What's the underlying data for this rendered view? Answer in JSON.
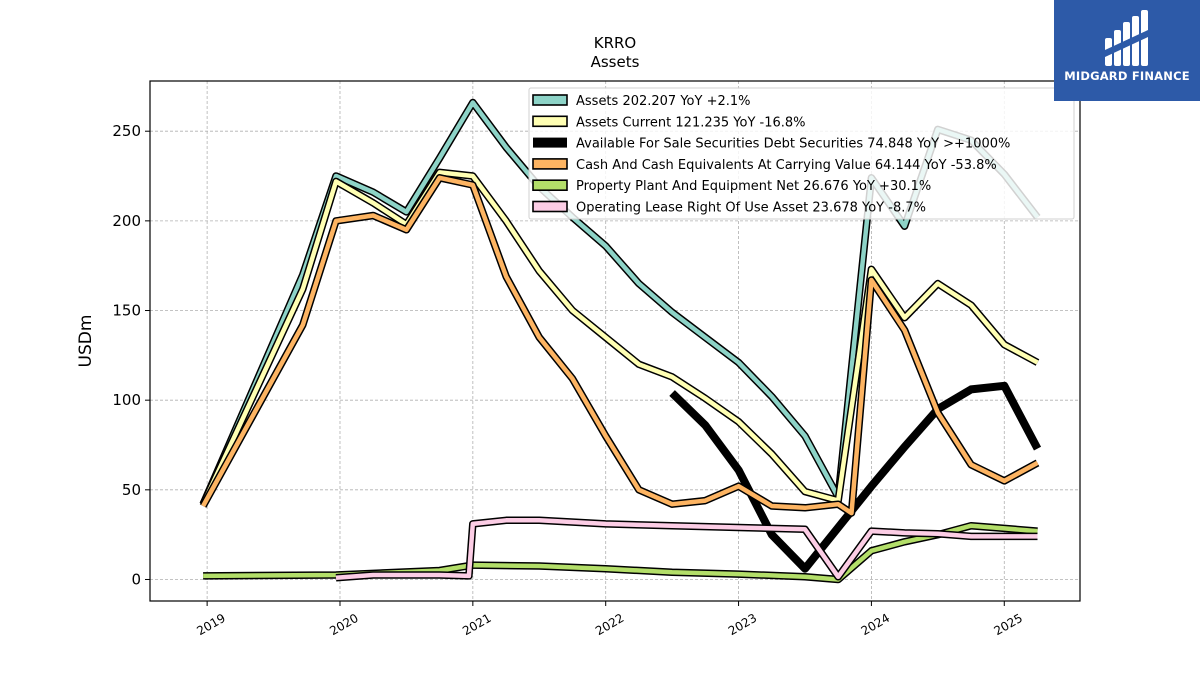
{
  "chart_data": {
    "type": "line",
    "title": "KRRO",
    "subtitle": "Assets",
    "ylabel": "USDm",
    "xlabel": "",
    "ylim": [
      -12,
      278
    ],
    "xlim": [
      2018.57,
      2025.57
    ],
    "yticks": [
      0,
      50,
      100,
      150,
      200,
      250
    ],
    "xticks": [
      {
        "value": 2019,
        "label": "2019"
      },
      {
        "value": 2020,
        "label": "2020"
      },
      {
        "value": 2021,
        "label": "2021"
      },
      {
        "value": 2022,
        "label": "2022"
      },
      {
        "value": 2023,
        "label": "2023"
      },
      {
        "value": 2024,
        "label": "2024"
      },
      {
        "value": 2025,
        "label": "2025"
      }
    ],
    "grid": true,
    "legend_position": "top-right",
    "series": [
      {
        "name": "Assets",
        "legend": "Assets  202.207 YoY +2.1%",
        "color": "#8dd3c7",
        "points": [
          [
            2018.97,
            42
          ],
          [
            2019.72,
            170
          ],
          [
            2019.97,
            225
          ],
          [
            2020.25,
            216
          ],
          [
            2020.5,
            205
          ],
          [
            2020.75,
            235
          ],
          [
            2021.0,
            266
          ],
          [
            2021.25,
            241
          ],
          [
            2021.5,
            219
          ],
          [
            2021.75,
            202
          ],
          [
            2022.0,
            186
          ],
          [
            2022.25,
            165
          ],
          [
            2022.5,
            149
          ],
          [
            2022.75,
            135
          ],
          [
            2023.0,
            121
          ],
          [
            2023.25,
            102
          ],
          [
            2023.5,
            80
          ],
          [
            2023.75,
            46
          ],
          [
            2024.0,
            224
          ],
          [
            2024.25,
            197
          ],
          [
            2024.5,
            251
          ],
          [
            2024.75,
            245
          ],
          [
            2025.0,
            226
          ],
          [
            2025.25,
            202
          ]
        ]
      },
      {
        "name": "Assets Current",
        "legend": "Assets Current  121.235 YoY -16.8%",
        "color": "#ffffb3",
        "points": [
          [
            2018.97,
            42
          ],
          [
            2019.72,
            162
          ],
          [
            2019.97,
            222
          ],
          [
            2020.25,
            210
          ],
          [
            2020.5,
            198
          ],
          [
            2020.75,
            227
          ],
          [
            2021.0,
            225
          ],
          [
            2021.25,
            200
          ],
          [
            2021.5,
            172
          ],
          [
            2021.75,
            150
          ],
          [
            2022.0,
            135
          ],
          [
            2022.25,
            120
          ],
          [
            2022.5,
            113
          ],
          [
            2022.75,
            101
          ],
          [
            2023.0,
            88
          ],
          [
            2023.25,
            70
          ],
          [
            2023.5,
            49
          ],
          [
            2023.75,
            44
          ],
          [
            2024.0,
            173
          ],
          [
            2024.25,
            146
          ],
          [
            2024.5,
            165
          ],
          [
            2024.75,
            153
          ],
          [
            2025.0,
            131
          ],
          [
            2025.25,
            121
          ]
        ]
      },
      {
        "name": "Available For Sale Securities Debt Securities",
        "legend": "Available For Sale Securities Debt Securities  74.848 YoY >+1000%",
        "color": "#000000",
        "points": [
          [
            2022.5,
            104
          ],
          [
            2022.75,
            86
          ],
          [
            2023.0,
            61
          ],
          [
            2023.25,
            25
          ],
          [
            2023.5,
            6
          ],
          [
            2023.75,
            29
          ],
          [
            2024.0,
            52
          ],
          [
            2024.25,
            74
          ],
          [
            2024.5,
            95
          ],
          [
            2024.75,
            106
          ],
          [
            2025.0,
            108
          ],
          [
            2025.25,
            73
          ]
        ]
      },
      {
        "name": "Cash And Cash Equivalents At Carrying Value",
        "legend": "Cash And Cash Equivalents At Carrying Value  64.144 YoY -53.8%",
        "color": "#fdb462",
        "points": [
          [
            2018.97,
            41
          ],
          [
            2019.72,
            142
          ],
          [
            2019.97,
            200
          ],
          [
            2020.25,
            203
          ],
          [
            2020.5,
            195
          ],
          [
            2020.75,
            224
          ],
          [
            2021.0,
            220
          ],
          [
            2021.25,
            169
          ],
          [
            2021.5,
            135
          ],
          [
            2021.75,
            112
          ],
          [
            2022.0,
            80
          ],
          [
            2022.25,
            50
          ],
          [
            2022.5,
            42
          ],
          [
            2022.75,
            44
          ],
          [
            2023.0,
            52
          ],
          [
            2023.25,
            41
          ],
          [
            2023.5,
            40
          ],
          [
            2023.75,
            42
          ],
          [
            2023.85,
            37
          ],
          [
            2024.0,
            167
          ],
          [
            2024.25,
            139
          ],
          [
            2024.5,
            93
          ],
          [
            2024.75,
            64
          ],
          [
            2025.0,
            55
          ],
          [
            2025.25,
            65
          ]
        ]
      },
      {
        "name": "Property Plant And Equipment Net",
        "legend": "Property Plant And Equipment Net  26.676 YoY +30.1%",
        "color": "#b3de69",
        "points": [
          [
            2018.97,
            2
          ],
          [
            2019.97,
            2.5
          ],
          [
            2020.75,
            5
          ],
          [
            2021.0,
            8
          ],
          [
            2021.5,
            7.5
          ],
          [
            2022.0,
            6
          ],
          [
            2022.5,
            4
          ],
          [
            2023.0,
            3
          ],
          [
            2023.5,
            1.5
          ],
          [
            2023.75,
            0
          ],
          [
            2024.0,
            16
          ],
          [
            2024.25,
            21
          ],
          [
            2024.5,
            25
          ],
          [
            2024.75,
            30
          ],
          [
            2025.0,
            28.5
          ],
          [
            2025.25,
            27
          ]
        ]
      },
      {
        "name": "Operating Lease Right Of Use Asset",
        "legend": "Operating Lease Right Of Use Asset  23.678 YoY -8.7%",
        "color": "#fccde5",
        "points": [
          [
            2019.97,
            1
          ],
          [
            2020.25,
            2.5
          ],
          [
            2020.5,
            2.5
          ],
          [
            2020.75,
            2.5
          ],
          [
            2020.97,
            2
          ],
          [
            2021.0,
            31
          ],
          [
            2021.25,
            33
          ],
          [
            2021.5,
            33
          ],
          [
            2022.0,
            31
          ],
          [
            2022.5,
            30
          ],
          [
            2023.0,
            29
          ],
          [
            2023.5,
            28
          ],
          [
            2023.75,
            1.5
          ],
          [
            2024.0,
            27
          ],
          [
            2024.25,
            26
          ],
          [
            2024.5,
            25.5
          ],
          [
            2024.75,
            24
          ],
          [
            2025.0,
            24
          ],
          [
            2025.25,
            24
          ]
        ]
      }
    ]
  },
  "logo": {
    "brand_text": "MIDGARD FINANCE",
    "background_color": "#2d5aa8"
  }
}
